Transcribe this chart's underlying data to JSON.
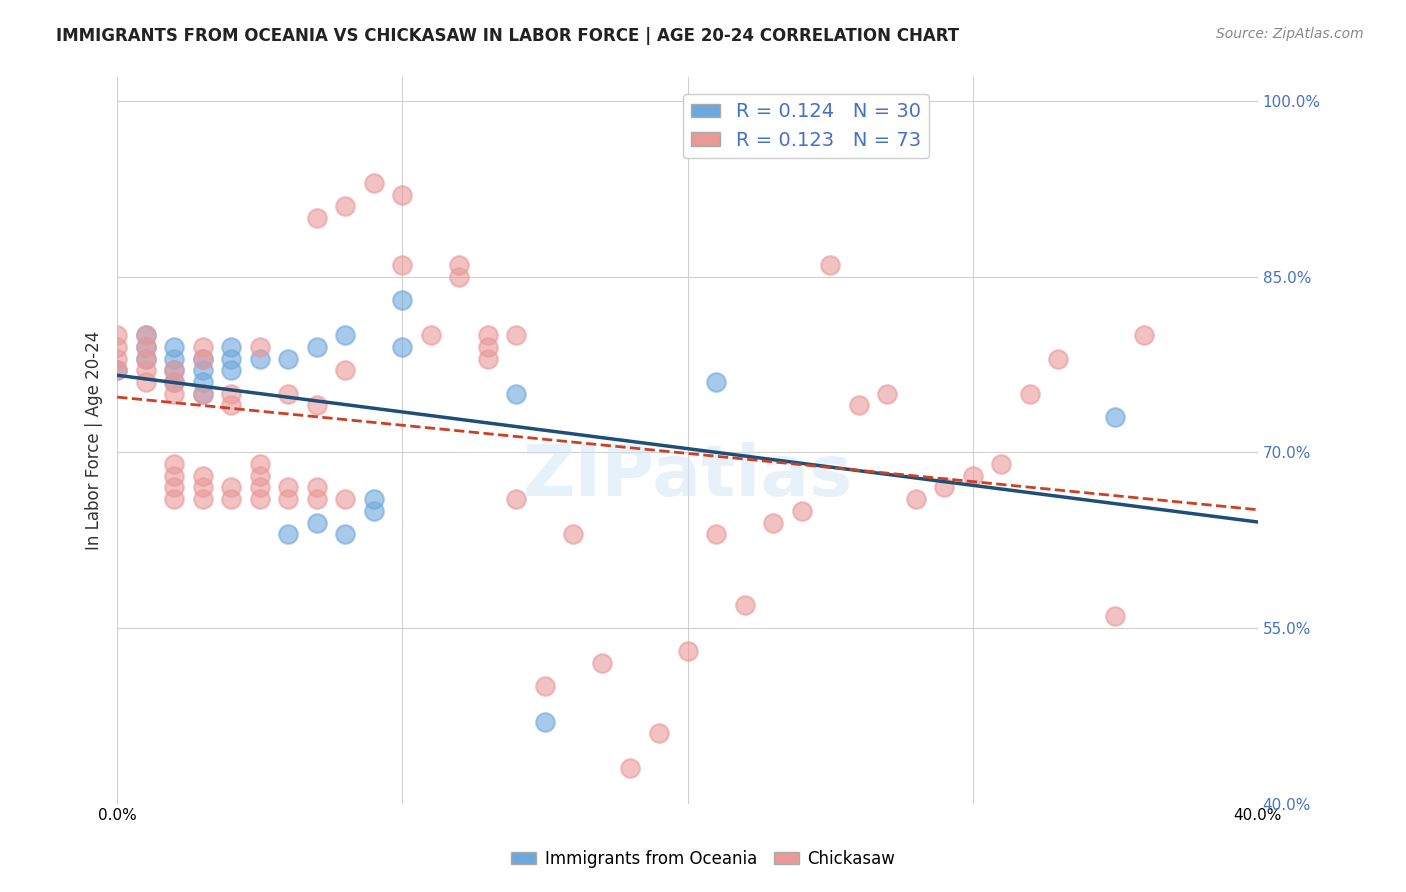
{
  "title": "IMMIGRANTS FROM OCEANIA VS CHICKASAW IN LABOR FORCE | AGE 20-24 CORRELATION CHART",
  "source": "Source: ZipAtlas.com",
  "ylabel": "In Labor Force | Age 20-24",
  "xlabel": "",
  "xlim": [
    0.0,
    0.4
  ],
  "ylim": [
    0.4,
    1.02
  ],
  "yticks": [
    0.4,
    0.55,
    0.7,
    0.85,
    1.0
  ],
  "ytick_labels": [
    "40.0%",
    "55.0%",
    "70.0%",
    "85.0%",
    "100.0%"
  ],
  "xticks": [
    0.0,
    0.1,
    0.2,
    0.3,
    0.4
  ],
  "xtick_labels": [
    "0.0%",
    "",
    "",
    "",
    "40.0%"
  ],
  "blue_R": 0.124,
  "blue_N": 30,
  "pink_R": 0.123,
  "pink_N": 73,
  "blue_color": "#6fa8dc",
  "pink_color": "#ea9999",
  "blue_line_color": "#1f4e79",
  "pink_line_color": "#cc4125",
  "watermark": "ZIPatlas",
  "blue_x": [
    0.0,
    0.01,
    0.01,
    0.01,
    0.02,
    0.02,
    0.02,
    0.02,
    0.03,
    0.03,
    0.03,
    0.03,
    0.04,
    0.04,
    0.04,
    0.05,
    0.06,
    0.06,
    0.07,
    0.07,
    0.08,
    0.08,
    0.09,
    0.09,
    0.1,
    0.1,
    0.14,
    0.15,
    0.21,
    0.35
  ],
  "blue_y": [
    0.77,
    0.78,
    0.79,
    0.8,
    0.76,
    0.77,
    0.78,
    0.79,
    0.75,
    0.76,
    0.77,
    0.78,
    0.77,
    0.78,
    0.79,
    0.78,
    0.63,
    0.78,
    0.64,
    0.79,
    0.8,
    0.63,
    0.65,
    0.66,
    0.79,
    0.83,
    0.75,
    0.47,
    0.76,
    0.73
  ],
  "pink_x": [
    0.0,
    0.0,
    0.0,
    0.0,
    0.01,
    0.01,
    0.01,
    0.01,
    0.01,
    0.02,
    0.02,
    0.02,
    0.02,
    0.02,
    0.02,
    0.02,
    0.03,
    0.03,
    0.03,
    0.03,
    0.03,
    0.03,
    0.04,
    0.04,
    0.04,
    0.04,
    0.05,
    0.05,
    0.05,
    0.05,
    0.05,
    0.06,
    0.06,
    0.06,
    0.07,
    0.07,
    0.07,
    0.07,
    0.08,
    0.08,
    0.08,
    0.09,
    0.1,
    0.1,
    0.11,
    0.12,
    0.12,
    0.13,
    0.13,
    0.13,
    0.14,
    0.14,
    0.15,
    0.16,
    0.17,
    0.18,
    0.19,
    0.2,
    0.21,
    0.22,
    0.23,
    0.24,
    0.25,
    0.26,
    0.27,
    0.28,
    0.29,
    0.3,
    0.31,
    0.32,
    0.33,
    0.35,
    0.36
  ],
  "pink_y": [
    0.77,
    0.78,
    0.79,
    0.8,
    0.76,
    0.77,
    0.78,
    0.79,
    0.8,
    0.66,
    0.67,
    0.68,
    0.69,
    0.75,
    0.76,
    0.77,
    0.66,
    0.67,
    0.68,
    0.75,
    0.78,
    0.79,
    0.66,
    0.67,
    0.74,
    0.75,
    0.66,
    0.67,
    0.68,
    0.69,
    0.79,
    0.66,
    0.67,
    0.75,
    0.66,
    0.67,
    0.74,
    0.9,
    0.66,
    0.77,
    0.91,
    0.93,
    0.86,
    0.92,
    0.8,
    0.85,
    0.86,
    0.78,
    0.79,
    0.8,
    0.66,
    0.8,
    0.5,
    0.63,
    0.52,
    0.43,
    0.46,
    0.53,
    0.63,
    0.57,
    0.64,
    0.65,
    0.86,
    0.74,
    0.75,
    0.66,
    0.67,
    0.68,
    0.69,
    0.75,
    0.78,
    0.56,
    0.8
  ]
}
